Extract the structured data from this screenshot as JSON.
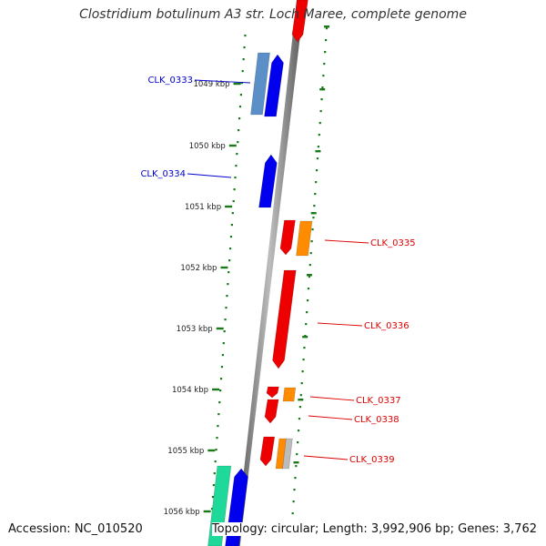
{
  "title": "Clostridium botulinum A3 str. Loch Maree, complete genome",
  "accession_text": "Accession: NC_010520",
  "topology_text": "Topology: circular; Length: 3,992,906 bp; Genes: 3,762",
  "colors": {
    "backbone": "#888888",
    "tick": "#1a7a1a",
    "left_label": "#0000cc",
    "right_label": "#dd0000"
  },
  "kbp_ticks": [
    {
      "label": "1049 kbp"
    },
    {
      "label": "1050 kbp"
    },
    {
      "label": "1051 kbp"
    },
    {
      "label": "1052 kbp"
    },
    {
      "label": "1053 kbp"
    },
    {
      "label": "1054 kbp"
    },
    {
      "label": "1055 kbp"
    },
    {
      "label": "1056 kbp"
    }
  ],
  "gene_labels": [
    {
      "name": "CLK_0333",
      "side": "left"
    },
    {
      "name": "CLK_0334",
      "side": "left"
    },
    {
      "name": "CLK_0335",
      "side": "right"
    },
    {
      "name": "CLK_0336",
      "side": "right"
    },
    {
      "name": "CLK_0337",
      "side": "right"
    },
    {
      "name": "CLK_0338",
      "side": "right"
    },
    {
      "name": "CLK_0339",
      "side": "right"
    }
  ],
  "features": [
    {
      "id": "clk-0333-left-block",
      "color": "#5b8fc8"
    },
    {
      "id": "clk-0333-arrow",
      "color": "#0000ee"
    },
    {
      "id": "clk-0334-arrow",
      "color": "#0000ee"
    },
    {
      "id": "clk-0335-red",
      "color": "#ee0000"
    },
    {
      "id": "clk-0335-orange",
      "color": "#ff8c00"
    },
    {
      "id": "clk-0336-red",
      "color": "#ee0000"
    },
    {
      "id": "clk-0337-red",
      "color": "#ee0000"
    },
    {
      "id": "clk-0337-orange",
      "color": "#ff8c00"
    },
    {
      "id": "clk-0338-red",
      "color": "#ee0000"
    },
    {
      "id": "clk-0339-red",
      "color": "#ee0000"
    },
    {
      "id": "clk-0339-orange",
      "color": "#ff8c00"
    },
    {
      "id": "clk-0339-grey",
      "color": "#bbbbbb"
    },
    {
      "id": "bottom-green",
      "color": "#1fd99a"
    },
    {
      "id": "bottom-blue",
      "color": "#0000ee"
    },
    {
      "id": "top-red",
      "color": "#ee0000"
    }
  ]
}
